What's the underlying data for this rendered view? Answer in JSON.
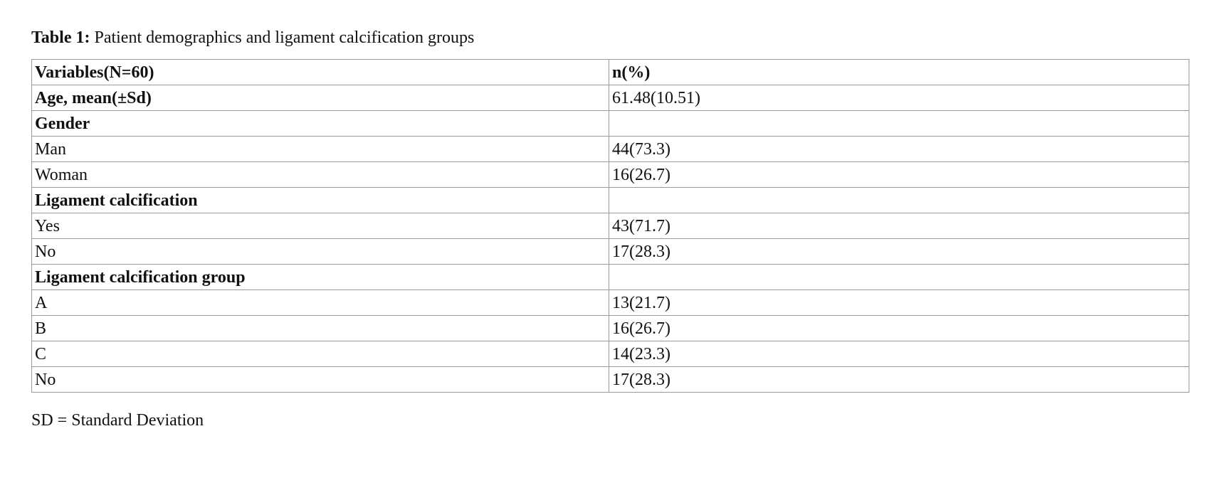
{
  "caption": {
    "label": "Table 1:",
    "text": "Patient demographics and ligament calcification groups"
  },
  "table": {
    "header": [
      "Variables(N=60)",
      "n(%)"
    ],
    "rows": [
      [
        "Age, mean(±Sd)",
        "61.48(10.51)"
      ],
      [
        "Gender"
      ],
      [
        "Man",
        "44(73.3)"
      ],
      [
        "Woman",
        "16(26.7)"
      ],
      [
        "Ligament calcification"
      ],
      [
        "Yes",
        "43(71.7)"
      ],
      [
        "No",
        "17(28.3)"
      ],
      [
        "Ligament calcification group"
      ],
      [
        "A",
        "13(21.7)"
      ],
      [
        "B",
        "16(26.7)"
      ],
      [
        "C",
        "14(23.3)"
      ],
      [
        "No",
        "17(28.3)"
      ]
    ]
  },
  "footnote": "SD = Standard Deviation"
}
